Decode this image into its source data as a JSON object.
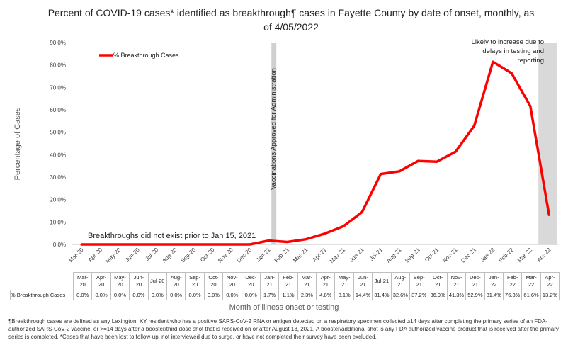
{
  "chart_data": {
    "type": "line",
    "title": "Percent of COVID-19 cases* identified as breakthrough¶ cases in Fayette County by date of onset, monthly, as of 4/05/2022",
    "xlabel": "Month of illness onset or testing",
    "ylabel": "Percentage of Cases",
    "ylim": [
      0,
      90
    ],
    "yticks": [
      "0.0%",
      "10.0%",
      "20.0%",
      "30.0%",
      "40.0%",
      "50.0%",
      "60.0%",
      "70.0%",
      "80.0%",
      "90.0%"
    ],
    "categories": [
      "Mar-20",
      "Apr-20",
      "May-20",
      "Jun-20",
      "Jul-20",
      "Aug-20",
      "Sep-20",
      "Oct-20",
      "Nov-20",
      "Dec-20",
      "Jan-21",
      "Feb-21",
      "Mar-21",
      "Apr-21",
      "May-21",
      "Jun-21",
      "Jul-21",
      "Aug-21",
      "Sep-21",
      "Oct-21",
      "Nov-21",
      "Dec-21",
      "Jan-22",
      "Feb-22",
      "Mar-22",
      "Apr-22"
    ],
    "series": [
      {
        "name": "% Breakthrough Cases",
        "color": "#ff0000",
        "values": [
          0.0,
          0.0,
          0.0,
          0.0,
          0.0,
          0.0,
          0.0,
          0.0,
          0.0,
          0.0,
          1.7,
          1.1,
          2.3,
          4.8,
          8.1,
          14.4,
          31.4,
          32.6,
          37.2,
          36.9,
          41.3,
          52.9,
          81.4,
          76.3,
          61.6,
          13.2
        ],
        "labels": [
          "0.0%",
          "0.0%",
          "0.0%",
          "0.0%",
          "0.0%",
          "0.0%",
          "0.0%",
          "0.0%",
          "0.0%",
          "0.0%",
          "1.7%",
          "1.1%",
          "2.3%",
          "4.8%",
          "8.1%",
          "14.4%",
          "31.4%",
          "32.6%",
          "37.2%",
          "36.9%",
          "41.3%",
          "52.9%",
          "81.4%",
          "76.3%",
          "61.6%",
          "13.2%"
        ]
      }
    ],
    "legend": "top-left",
    "grid": false,
    "annotations": {
      "vaccination": "Vaccinations Approved for Administration",
      "no_breakthrough": "Breakthroughs did not exist prior to Jan 15, 2021",
      "increase": [
        "Likely to increase due to",
        "delays in testing and",
        "reporting"
      ]
    },
    "table": {
      "row_label": "% Breakthrough Cases",
      "headers": [
        [
          "Mar-",
          "20"
        ],
        [
          "Apr-",
          "20"
        ],
        [
          "May-",
          "20"
        ],
        [
          "Jun-",
          "20"
        ],
        [
          "Jul-20"
        ],
        [
          "Aug-",
          "20"
        ],
        [
          "Sep-",
          "20"
        ],
        [
          "Oct-",
          "20"
        ],
        [
          "Nov-",
          "20"
        ],
        [
          "Dec-",
          "20"
        ],
        [
          "Jan-",
          "21"
        ],
        [
          "Feb-",
          "21"
        ],
        [
          "Mar-",
          "21"
        ],
        [
          "Apr-",
          "21"
        ],
        [
          "May-",
          "21"
        ],
        [
          "Jun-",
          "21"
        ],
        [
          "Jul-21"
        ],
        [
          "Aug-",
          "21"
        ],
        [
          "Sep-",
          "21"
        ],
        [
          "Oct-",
          "21"
        ],
        [
          "Nov-",
          "21"
        ],
        [
          "Dec-",
          "21"
        ],
        [
          "Jan-",
          "22"
        ],
        [
          "Feb-",
          "22"
        ],
        [
          "Mar-",
          "22"
        ],
        [
          "Apr-",
          "22"
        ]
      ]
    }
  },
  "footnote": "¶Breakthrough cases are defined as any Lexington, KY resident who has a positive SARS-CoV-2 RNA or antigen detected on a respiratory specimen collected ≥14 days after completing the primary series of an FDA-authorized SARS-CoV-2 vaccine, or >=14 days after a booster/third dose shot that is received on or after August 13, 2021.  A booster/additional shot is any FDA authorized vaccine product that is received after the primary series is completed. *Cases that have been lost to follow-up, not interviewed due to surge, or have not completed their survey have been excluded."
}
